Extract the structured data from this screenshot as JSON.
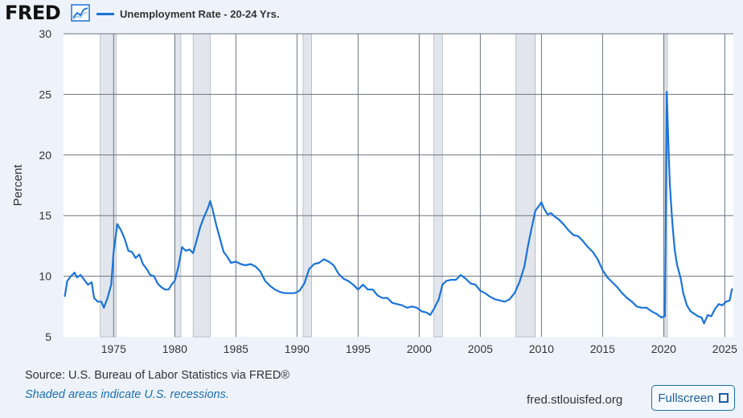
{
  "header": {
    "logo": "FRED",
    "logo_icon": "line-chart-icon",
    "legend_label": "Unemployment Rate - 20-24 Yrs.",
    "legend_color": "#1a73d9"
  },
  "footer": {
    "source": "Source: U.S. Bureau of Labor Statistics via FRED®",
    "note": "Shaded areas indicate U.S. recessions.",
    "site": "fred.stlouisfed.org",
    "fullscreen_label": "Fullscreen",
    "fullscreen_icon": "expand-icon"
  },
  "chart_data": {
    "type": "line",
    "title": "",
    "xlabel": "",
    "ylabel": "Percent",
    "xlim": [
      1970.9,
      2025.7
    ],
    "ylim": [
      5,
      30
    ],
    "yticks": [
      5,
      10,
      15,
      20,
      25,
      30
    ],
    "xticks": [
      1975,
      1980,
      1985,
      1990,
      1995,
      2000,
      2005,
      2010,
      2015,
      2020,
      2025
    ],
    "grid": true,
    "line_color": "#1a73d9",
    "recession_color": "#e2e6ec",
    "recessions": [
      [
        1973.9,
        1975.2
      ],
      [
        1980.0,
        1980.5
      ],
      [
        1981.5,
        1982.9
      ],
      [
        1990.5,
        1991.2
      ],
      [
        2001.2,
        2001.9
      ],
      [
        2007.9,
        2009.5
      ],
      [
        2020.1,
        2020.3
      ]
    ],
    "series": [
      {
        "name": "Unemployment Rate - 20-24 Yrs.",
        "points": [
          [
            1971.0,
            8.3
          ],
          [
            1971.2,
            9.6
          ],
          [
            1971.5,
            10.0
          ],
          [
            1971.8,
            10.3
          ],
          [
            1972.0,
            9.9
          ],
          [
            1972.3,
            10.1
          ],
          [
            1972.6,
            9.7
          ],
          [
            1972.9,
            9.3
          ],
          [
            1973.2,
            9.5
          ],
          [
            1973.4,
            8.2
          ],
          [
            1973.7,
            7.9
          ],
          [
            1974.0,
            7.9
          ],
          [
            1974.2,
            7.4
          ],
          [
            1974.5,
            8.2
          ],
          [
            1974.8,
            9.3
          ],
          [
            1975.0,
            12.0
          ],
          [
            1975.3,
            14.3
          ],
          [
            1975.6,
            13.8
          ],
          [
            1975.9,
            13.1
          ],
          [
            1976.2,
            12.1
          ],
          [
            1976.5,
            12.0
          ],
          [
            1976.8,
            11.5
          ],
          [
            1977.1,
            11.8
          ],
          [
            1977.4,
            11.0
          ],
          [
            1977.7,
            10.6
          ],
          [
            1978.0,
            10.1
          ],
          [
            1978.3,
            10.0
          ],
          [
            1978.6,
            9.4
          ],
          [
            1978.9,
            9.1
          ],
          [
            1979.2,
            8.9
          ],
          [
            1979.5,
            8.9
          ],
          [
            1979.8,
            9.4
          ],
          [
            1980.0,
            9.6
          ],
          [
            1980.3,
            10.8
          ],
          [
            1980.6,
            12.4
          ],
          [
            1980.9,
            12.1
          ],
          [
            1981.2,
            12.2
          ],
          [
            1981.5,
            11.9
          ],
          [
            1981.8,
            13.0
          ],
          [
            1982.1,
            14.1
          ],
          [
            1982.4,
            14.9
          ],
          [
            1982.7,
            15.6
          ],
          [
            1982.9,
            16.2
          ],
          [
            1983.1,
            15.5
          ],
          [
            1983.4,
            14.2
          ],
          [
            1983.7,
            13.1
          ],
          [
            1984.0,
            12.0
          ],
          [
            1984.3,
            11.6
          ],
          [
            1984.6,
            11.1
          ],
          [
            1985.0,
            11.2
          ],
          [
            1985.4,
            11.0
          ],
          [
            1985.8,
            10.9
          ],
          [
            1986.2,
            11.0
          ],
          [
            1986.6,
            10.8
          ],
          [
            1987.0,
            10.4
          ],
          [
            1987.4,
            9.6
          ],
          [
            1987.8,
            9.2
          ],
          [
            1988.2,
            8.9
          ],
          [
            1988.6,
            8.7
          ],
          [
            1989.0,
            8.6
          ],
          [
            1989.4,
            8.6
          ],
          [
            1989.8,
            8.6
          ],
          [
            1990.2,
            8.8
          ],
          [
            1990.6,
            9.4
          ],
          [
            1991.0,
            10.6
          ],
          [
            1991.4,
            11.0
          ],
          [
            1991.8,
            11.1
          ],
          [
            1992.2,
            11.4
          ],
          [
            1992.6,
            11.2
          ],
          [
            1993.0,
            10.9
          ],
          [
            1993.4,
            10.2
          ],
          [
            1993.8,
            9.8
          ],
          [
            1994.2,
            9.6
          ],
          [
            1994.6,
            9.3
          ],
          [
            1995.0,
            8.9
          ],
          [
            1995.4,
            9.3
          ],
          [
            1995.8,
            8.9
          ],
          [
            1996.2,
            8.9
          ],
          [
            1996.6,
            8.4
          ],
          [
            1997.0,
            8.2
          ],
          [
            1997.4,
            8.2
          ],
          [
            1997.8,
            7.8
          ],
          [
            1998.2,
            7.7
          ],
          [
            1998.6,
            7.6
          ],
          [
            1999.0,
            7.4
          ],
          [
            1999.4,
            7.5
          ],
          [
            1999.8,
            7.4
          ],
          [
            2000.2,
            7.1
          ],
          [
            2000.6,
            7.0
          ],
          [
            2000.9,
            6.8
          ],
          [
            2001.2,
            7.3
          ],
          [
            2001.6,
            8.1
          ],
          [
            2001.9,
            9.3
          ],
          [
            2002.2,
            9.6
          ],
          [
            2002.6,
            9.7
          ],
          [
            2003.0,
            9.7
          ],
          [
            2003.4,
            10.1
          ],
          [
            2003.8,
            9.8
          ],
          [
            2004.2,
            9.4
          ],
          [
            2004.6,
            9.3
          ],
          [
            2005.0,
            8.8
          ],
          [
            2005.4,
            8.6
          ],
          [
            2005.8,
            8.3
          ],
          [
            2006.2,
            8.1
          ],
          [
            2006.6,
            8.0
          ],
          [
            2007.0,
            7.9
          ],
          [
            2007.4,
            8.1
          ],
          [
            2007.8,
            8.6
          ],
          [
            2008.2,
            9.5
          ],
          [
            2008.6,
            10.8
          ],
          [
            2008.9,
            12.5
          ],
          [
            2009.2,
            14.0
          ],
          [
            2009.5,
            15.4
          ],
          [
            2009.8,
            15.8
          ],
          [
            2010.0,
            16.1
          ],
          [
            2010.2,
            15.6
          ],
          [
            2010.5,
            15.1
          ],
          [
            2010.8,
            15.2
          ],
          [
            2011.1,
            14.9
          ],
          [
            2011.4,
            14.7
          ],
          [
            2011.8,
            14.3
          ],
          [
            2012.2,
            13.8
          ],
          [
            2012.6,
            13.4
          ],
          [
            2013.0,
            13.3
          ],
          [
            2013.4,
            12.9
          ],
          [
            2013.8,
            12.4
          ],
          [
            2014.2,
            12.0
          ],
          [
            2014.6,
            11.4
          ],
          [
            2015.0,
            10.5
          ],
          [
            2015.4,
            9.9
          ],
          [
            2015.8,
            9.5
          ],
          [
            2016.2,
            9.1
          ],
          [
            2016.6,
            8.6
          ],
          [
            2017.0,
            8.2
          ],
          [
            2017.4,
            7.9
          ],
          [
            2017.8,
            7.5
          ],
          [
            2018.2,
            7.4
          ],
          [
            2018.6,
            7.4
          ],
          [
            2019.0,
            7.1
          ],
          [
            2019.4,
            6.9
          ],
          [
            2019.8,
            6.6
          ],
          [
            2020.1,
            6.7
          ],
          [
            2020.25,
            25.2
          ],
          [
            2020.4,
            20.5
          ],
          [
            2020.5,
            17.6
          ],
          [
            2020.7,
            14.5
          ],
          [
            2020.9,
            12.2
          ],
          [
            2021.1,
            10.9
          ],
          [
            2021.4,
            9.8
          ],
          [
            2021.6,
            8.6
          ],
          [
            2021.9,
            7.6
          ],
          [
            2022.2,
            7.1
          ],
          [
            2022.5,
            6.9
          ],
          [
            2022.8,
            6.7
          ],
          [
            2023.1,
            6.6
          ],
          [
            2023.3,
            6.1
          ],
          [
            2023.6,
            6.8
          ],
          [
            2023.9,
            6.7
          ],
          [
            2024.2,
            7.3
          ],
          [
            2024.5,
            7.7
          ],
          [
            2024.8,
            7.6
          ],
          [
            2025.1,
            7.9
          ],
          [
            2025.4,
            8.0
          ],
          [
            2025.6,
            9.0
          ]
        ]
      }
    ]
  }
}
